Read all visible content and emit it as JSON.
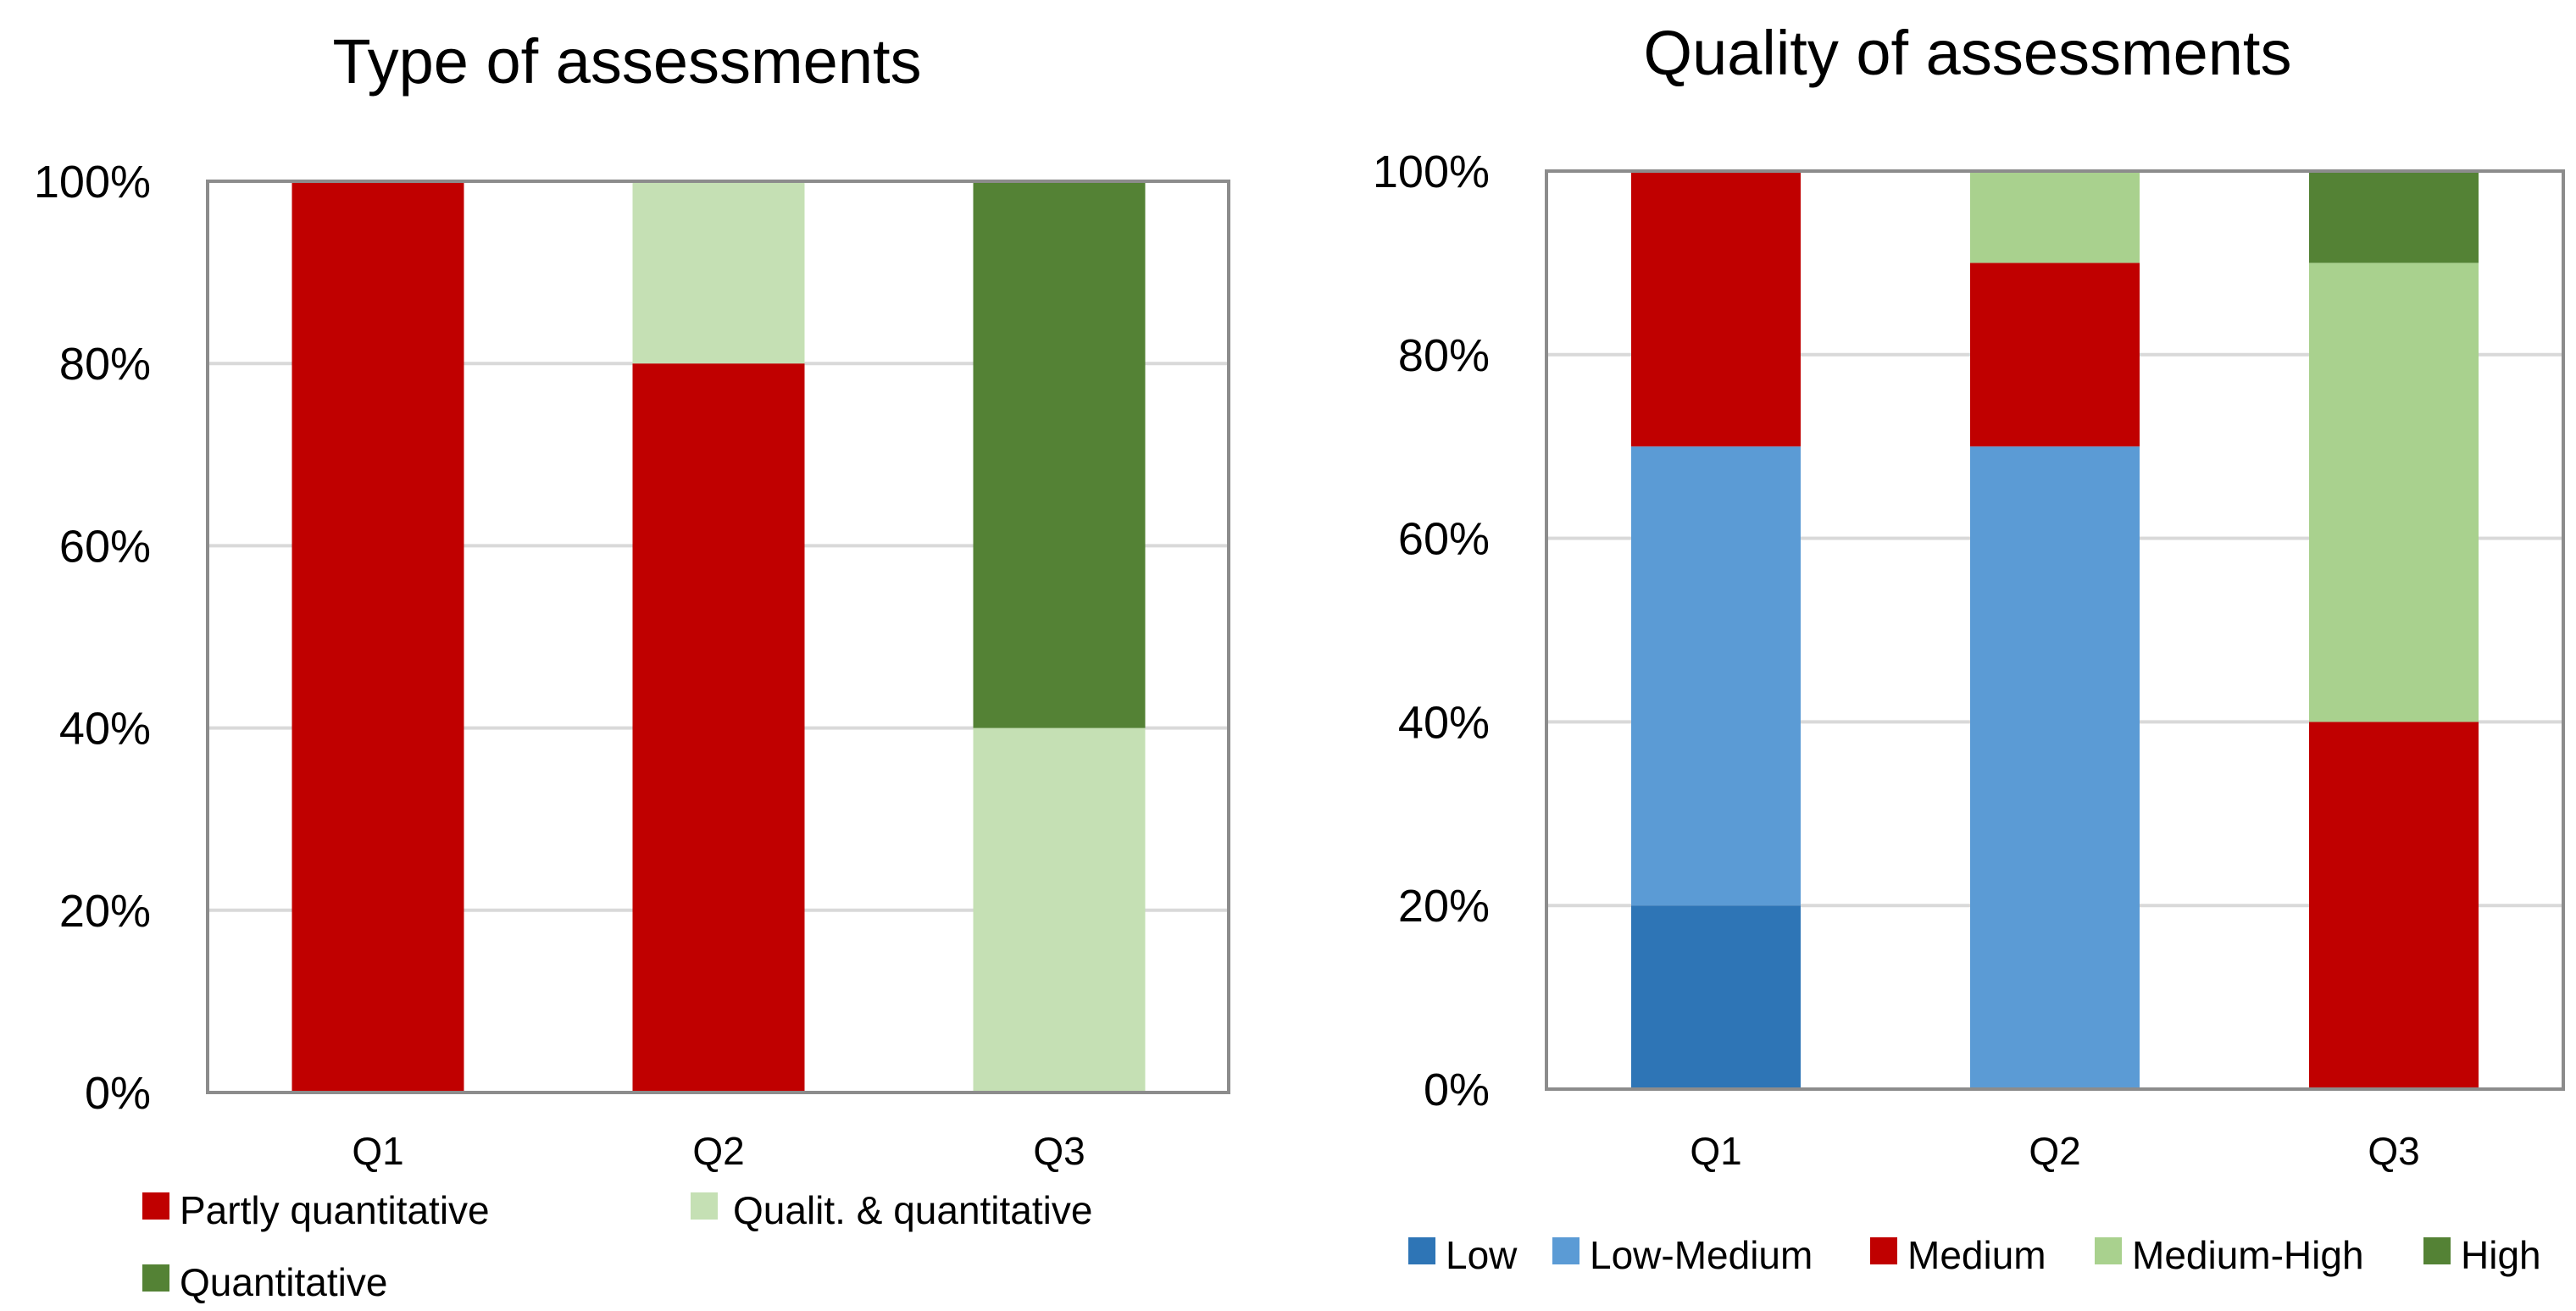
{
  "chart_data": [
    {
      "type": "bar",
      "stacked": true,
      "title": "Type of assessments",
      "categories": [
        "Q1",
        "Q2",
        "Q3"
      ],
      "ylim": [
        0,
        100
      ],
      "yticks": [
        0,
        20,
        40,
        60,
        80,
        100
      ],
      "ytick_labels": [
        "0%",
        "20%",
        "40%",
        "60%",
        "80%",
        "100%"
      ],
      "grid": true,
      "legend_position": "bottom",
      "series": [
        {
          "name": "Partly quantitative",
          "color": "#C00000",
          "values": [
            100,
            80,
            0
          ]
        },
        {
          "name": "Qualit. & quantitative",
          "color": "#C5E0B4",
          "values": [
            0,
            20,
            40
          ]
        },
        {
          "name": "Quantitative",
          "color": "#548235",
          "values": [
            0,
            0,
            60
          ]
        }
      ]
    },
    {
      "type": "bar",
      "stacked": true,
      "title": "Quality of assessments",
      "categories": [
        "Q1",
        "Q2",
        "Q3"
      ],
      "ylim": [
        0,
        100
      ],
      "yticks": [
        0,
        20,
        40,
        60,
        80,
        100
      ],
      "ytick_labels": [
        "0%",
        "20%",
        "40%",
        "60%",
        "80%",
        "100%"
      ],
      "grid": true,
      "legend_position": "bottom",
      "series": [
        {
          "name": "Low",
          "color": "#2E75B6",
          "values": [
            20,
            0,
            0
          ]
        },
        {
          "name": "Low-Medium",
          "color": "#5B9BD5",
          "values": [
            50,
            70,
            0
          ]
        },
        {
          "name": "Medium",
          "color": "#C00000",
          "values": [
            30,
            20,
            40
          ]
        },
        {
          "name": "Medium-High",
          "color": "#A9D18E",
          "values": [
            0,
            10,
            50
          ]
        },
        {
          "name": "High",
          "color": "#548235",
          "values": [
            0,
            0,
            10
          ]
        }
      ]
    }
  ]
}
